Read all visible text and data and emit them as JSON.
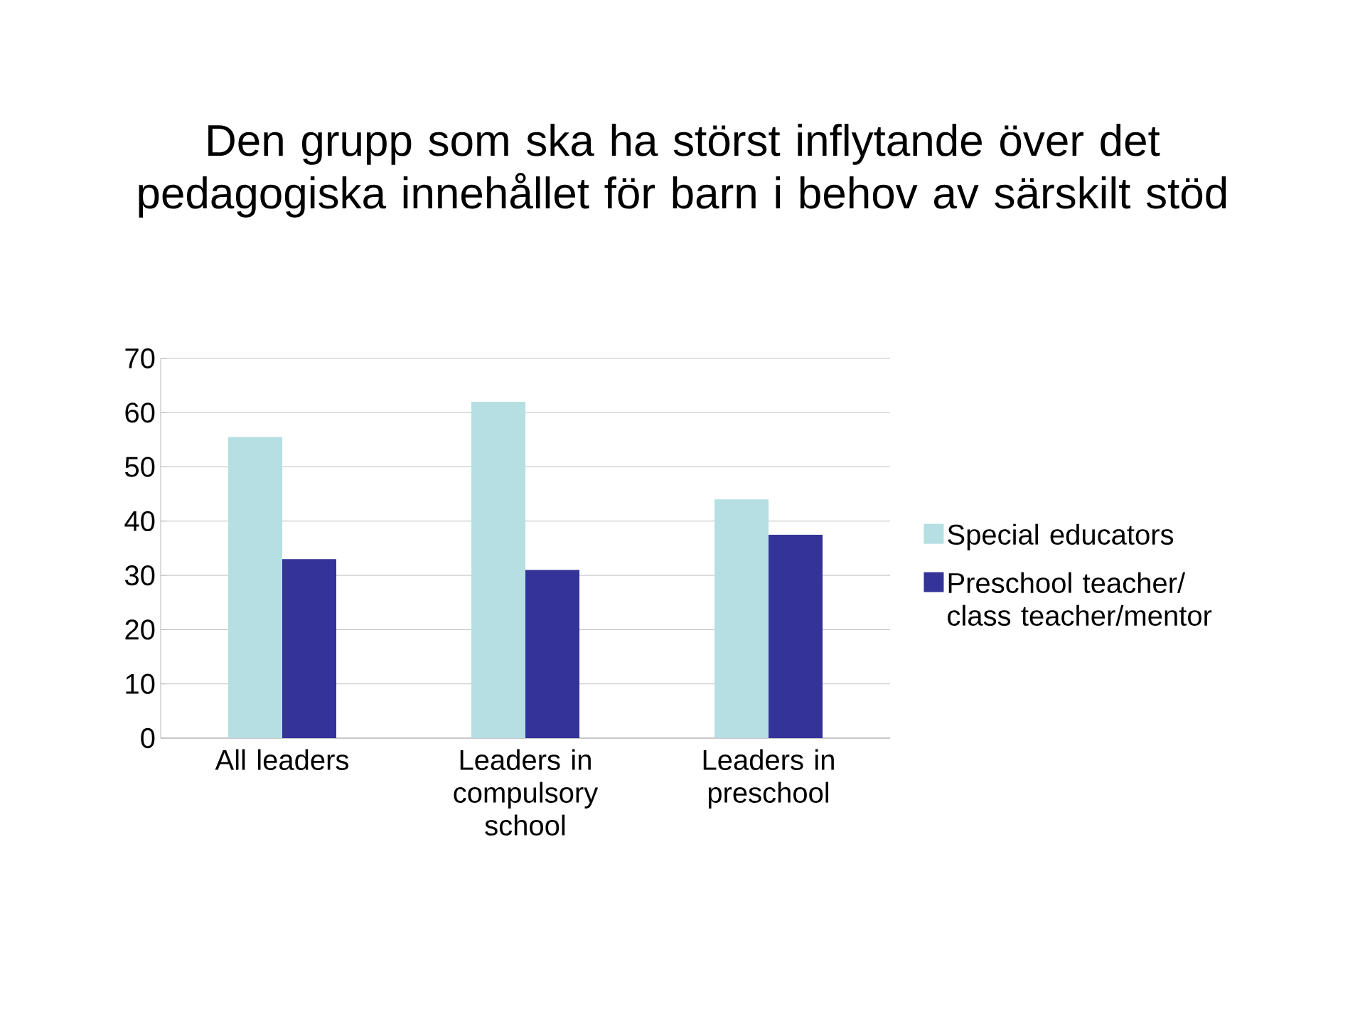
{
  "chart_data": {
    "type": "bar",
    "title": "Den grupp som ska ha störst inflytande över det pedagogiska innehållet för barn i behov av särskilt stöd",
    "categories": [
      "All leaders",
      "Leaders in compulsory school",
      "Leaders in preschool"
    ],
    "series": [
      {
        "name": "Special educators",
        "color": "#b5dfe2",
        "values": [
          55.5,
          62,
          44
        ]
      },
      {
        "name": "Preschool teacher/ class teacher/mentor",
        "color": "#333399",
        "values": [
          33,
          31,
          37.5
        ]
      }
    ],
    "ylim": [
      0,
      70
    ],
    "yticks": [
      0,
      10,
      20,
      30,
      40,
      50,
      60,
      70
    ],
    "grid": "y",
    "legend": "right"
  }
}
